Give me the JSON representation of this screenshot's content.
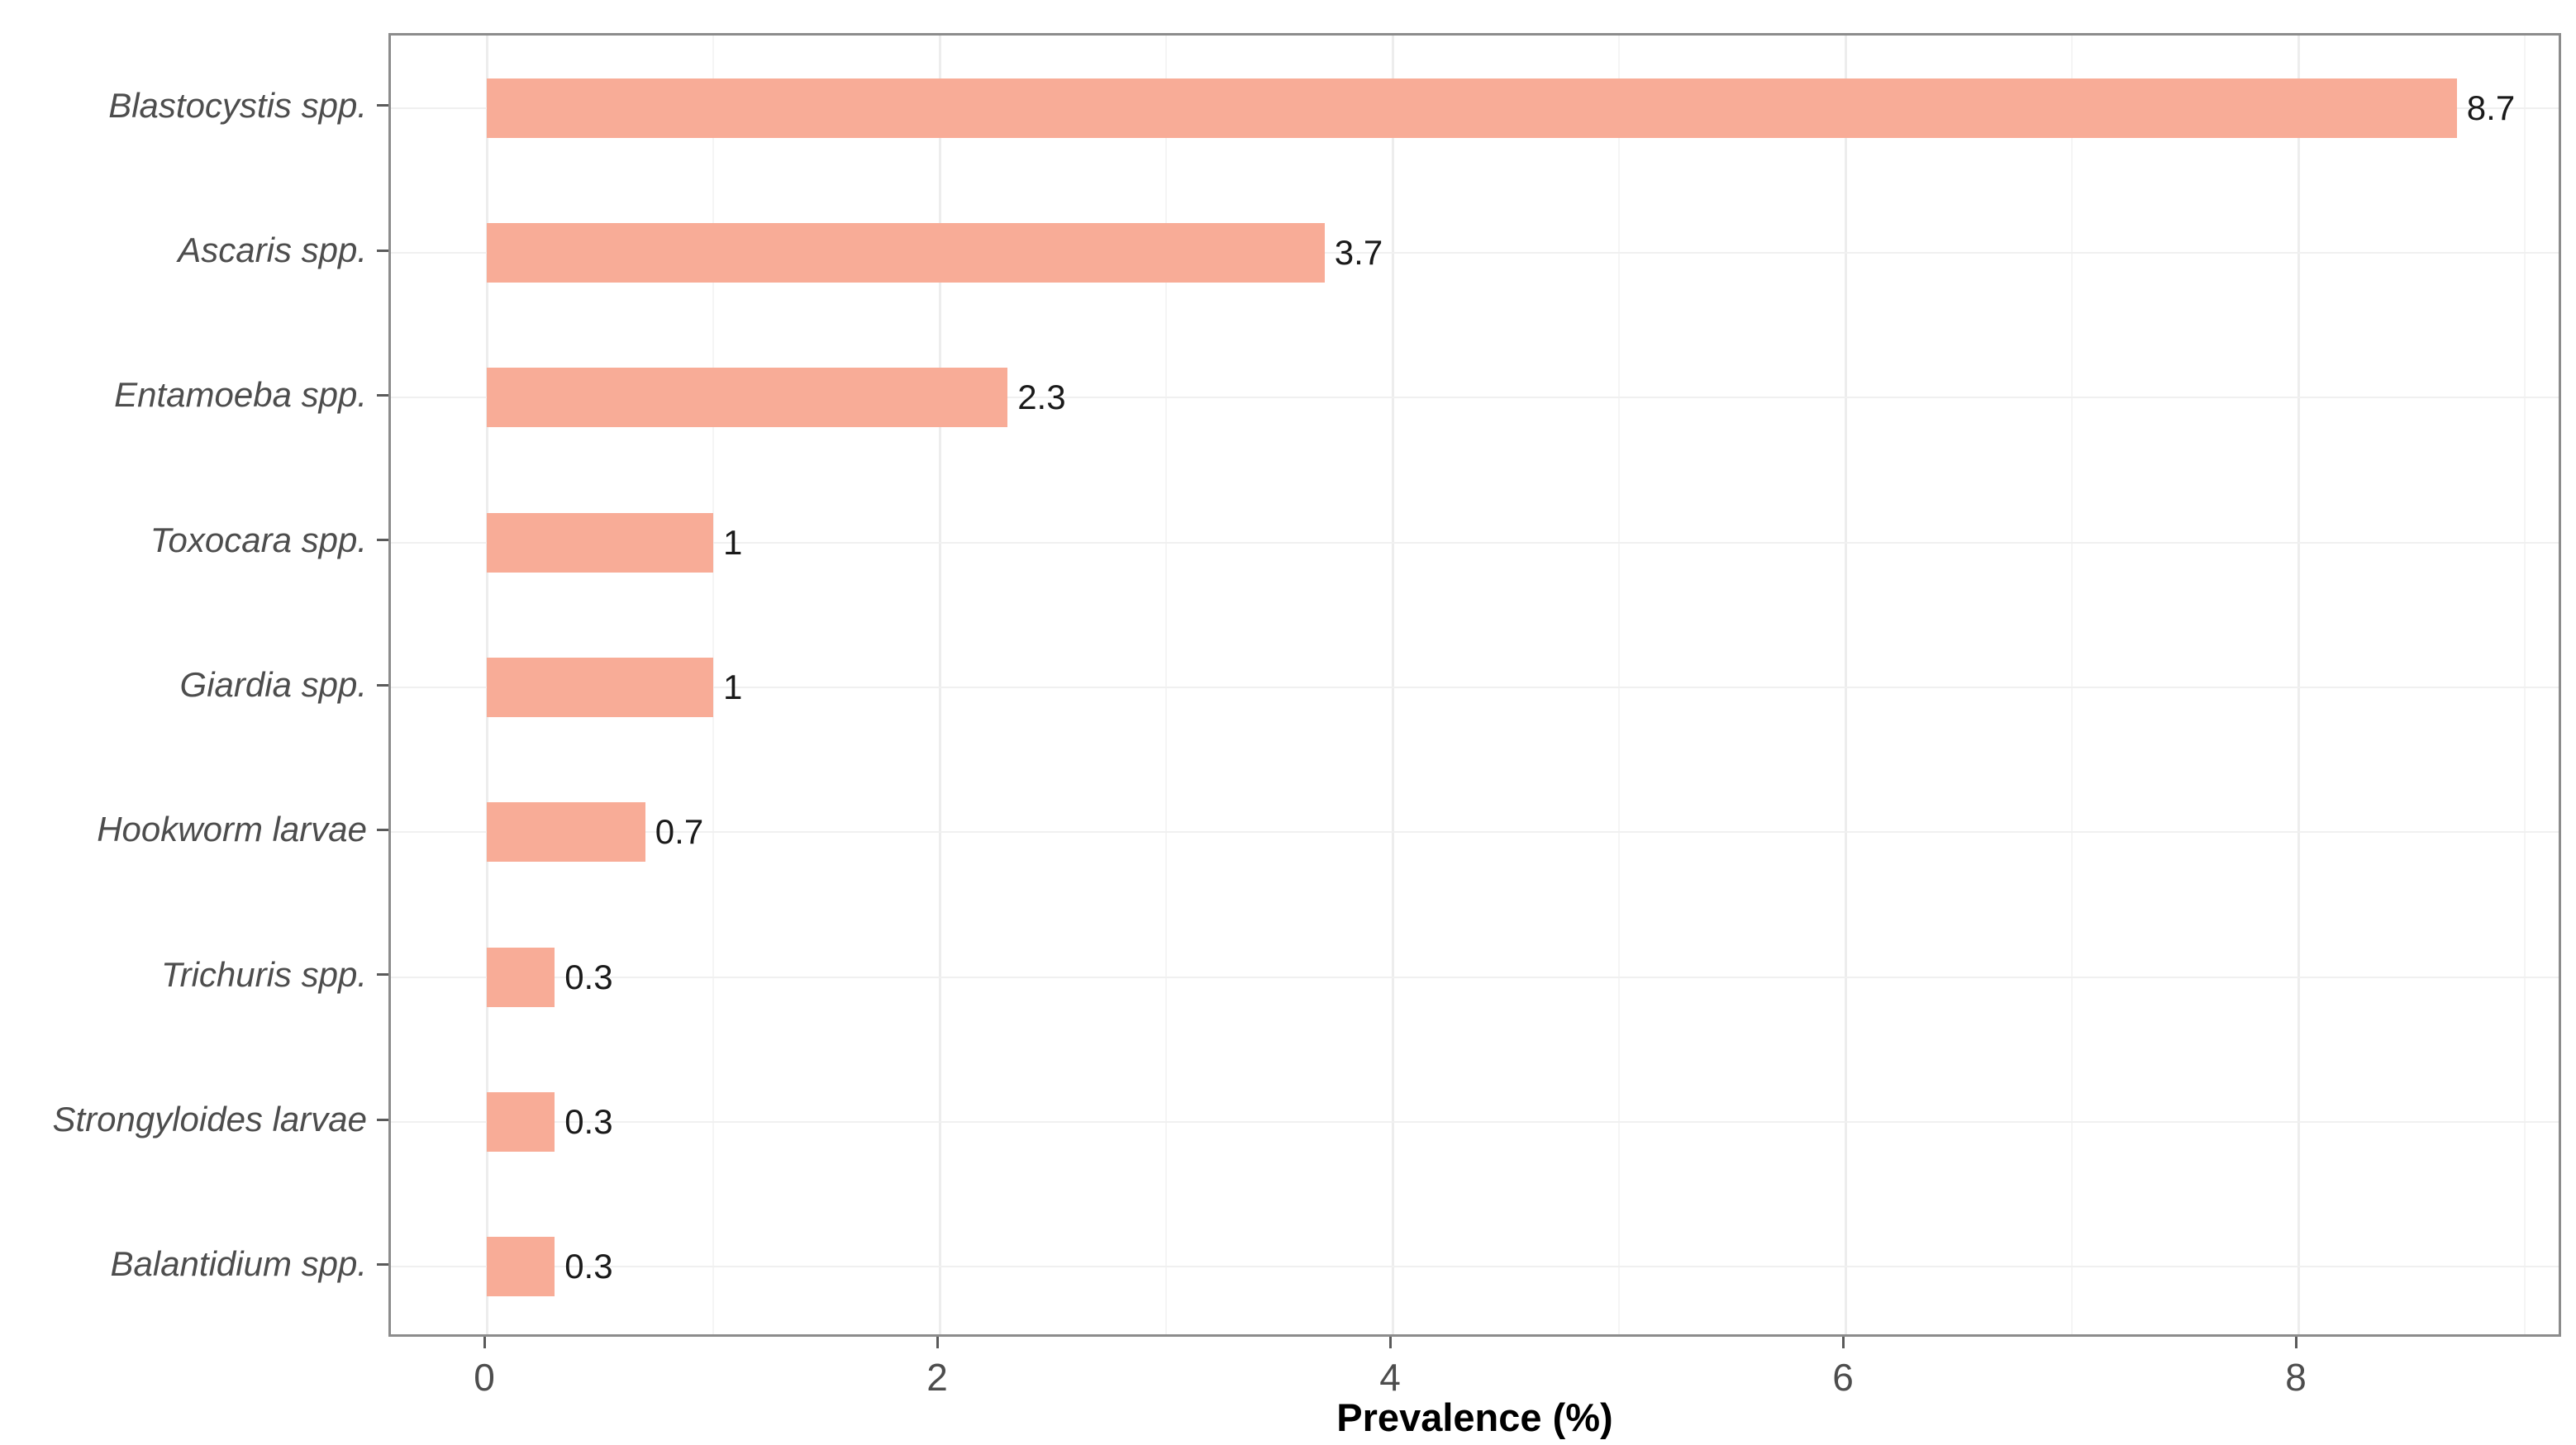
{
  "chart_data": {
    "type": "bar",
    "orientation": "horizontal",
    "title": "",
    "xlabel": "Prevalence (%)",
    "ylabel": "",
    "categories": [
      "Blastocystis spp.",
      "Ascaris spp.",
      "Entamoeba spp.",
      "Toxocara spp.",
      "Giardia spp.",
      "Hookworm larvae",
      "Trichuris spp.",
      "Strongyloides larvae",
      "Balantidium spp."
    ],
    "values": [
      8.7,
      3.7,
      2.3,
      1,
      1,
      0.7,
      0.3,
      0.3,
      0.3
    ],
    "value_labels": [
      "8.7",
      "3.7",
      "2.3",
      "1",
      "1",
      "0.7",
      "0.3",
      "0.3",
      "0.3"
    ],
    "x_ticks": [
      0,
      2,
      4,
      6,
      8
    ],
    "x_tick_labels": [
      "0",
      "2",
      "4",
      "6",
      "8"
    ],
    "x_minor_ticks": [
      1,
      3,
      5,
      7,
      9
    ],
    "xlim": [
      -0.42,
      9.17
    ],
    "grid": true,
    "legend": "none",
    "bar_color": "#F8AC97",
    "axis_text_color": "#4D4D4D",
    "value_label_color": "#1A1A1A",
    "panel_border_color": "#8C8C8C",
    "grid_major_color": "#EDEDED",
    "grid_minor_color": "#F5F5F5"
  }
}
